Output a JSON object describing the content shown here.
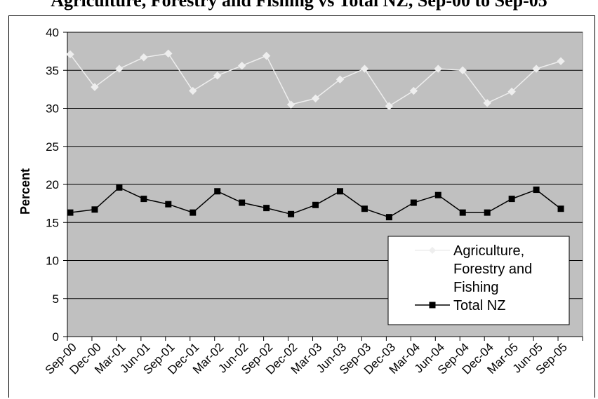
{
  "title": "Agriculture, Forestry and Fishing vs Total NZ, Sep-00 to Sep-05",
  "chart_data": {
    "type": "line",
    "categories": [
      "Sep-00",
      "Dec-00",
      "Mar-01",
      "Jun-01",
      "Sep-01",
      "Dec-01",
      "Mar-02",
      "Jun-02",
      "Sep-02",
      "Dec-02",
      "Mar-03",
      "Jun-03",
      "Sep-03",
      "Dec-03",
      "Mar-04",
      "Jun-04",
      "Sep-04",
      "Dec-04",
      "Mar-05",
      "Jun-05",
      "Sep-05"
    ],
    "ylabel": "Percent",
    "xlabel": "",
    "ylim": [
      0,
      40
    ],
    "yticks": [
      "0",
      "5",
      "10",
      "15",
      "20",
      "25",
      "30",
      "35",
      "40"
    ],
    "grid": true,
    "background": "#c0c0c0",
    "legend_position": "bottom-right",
    "series": [
      {
        "name": "Agriculture, Forestry and Fishing",
        "color": "#eeeeee",
        "marker": "diamond",
        "values": [
          37.1,
          32.8,
          35.2,
          36.7,
          37.2,
          32.3,
          34.3,
          35.6,
          36.9,
          30.5,
          31.3,
          33.8,
          35.2,
          30.3,
          32.3,
          35.2,
          35.0,
          30.7,
          32.2,
          35.2,
          36.2
        ]
      },
      {
        "name": "Total NZ",
        "color": "#000000",
        "marker": "square",
        "values": [
          16.3,
          16.7,
          19.6,
          18.1,
          17.4,
          16.3,
          19.1,
          17.6,
          16.9,
          16.1,
          17.3,
          19.1,
          16.8,
          15.7,
          17.6,
          18.6,
          16.3,
          16.3,
          18.1,
          19.3,
          16.8
        ]
      }
    ]
  }
}
